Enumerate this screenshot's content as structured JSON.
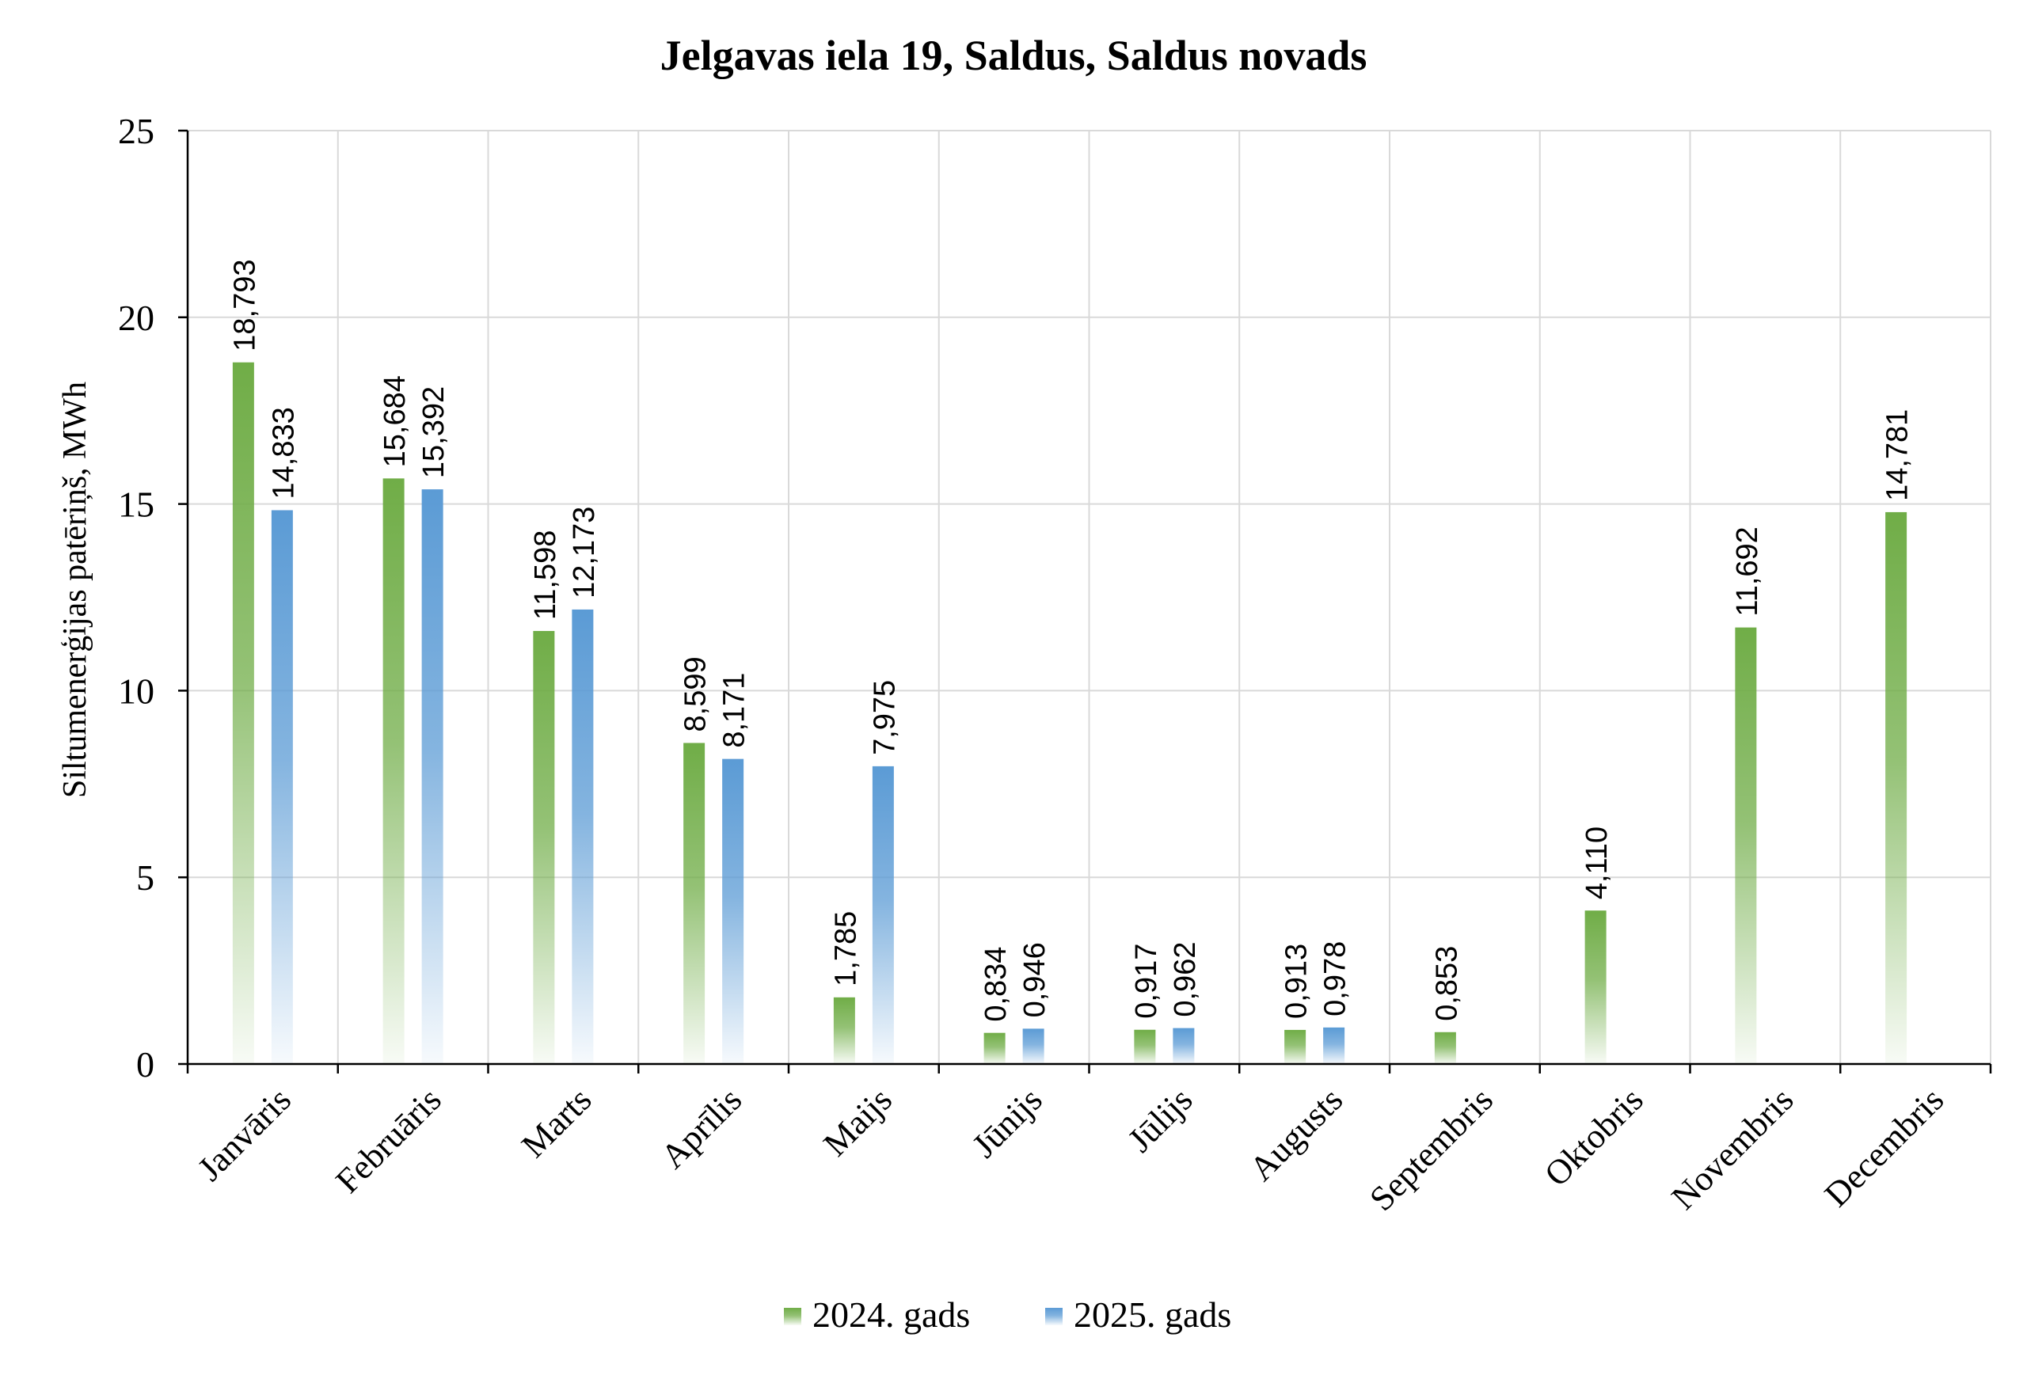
{
  "chart_data": {
    "type": "bar",
    "title": "Jelgavas iela 19, Saldus, Saldus novads",
    "xlabel": "",
    "ylabel": "Siltumenerģijas patēriņš, MWh",
    "ylim": [
      0,
      25
    ],
    "yticks": [
      "0",
      "5",
      "10",
      "15",
      "20",
      "25"
    ],
    "grid": true,
    "legend_position": "bottom",
    "categories": [
      "Janvāris",
      "Februāris",
      "Marts",
      "Aprīlis",
      "Maijs",
      "Jūnijs",
      "Jūlijs",
      "Augusts",
      "Septembris",
      "Oktobris",
      "Novembris",
      "Decembris"
    ],
    "series": [
      {
        "name": "2024. gads",
        "color": "#70AD47",
        "values": [
          18.793,
          15.684,
          11.598,
          8.599,
          1.785,
          0.834,
          0.917,
          0.913,
          0.853,
          4.11,
          11.692,
          14.781
        ],
        "labels": [
          "18,793",
          "15,684",
          "11,598",
          "8,599",
          "1,785",
          "0,834",
          "0,917",
          "0,913",
          "0,853",
          "4,110",
          "11,692",
          "14,781"
        ]
      },
      {
        "name": "2025. gads",
        "color": "#5B9BD5",
        "values": [
          14.833,
          15.392,
          12.173,
          8.171,
          7.975,
          0.946,
          0.962,
          0.978,
          null,
          null,
          null,
          null
        ],
        "labels": [
          "14,833",
          "15,392",
          "12,173",
          "8,171",
          "7,975",
          "0,946",
          "0,962",
          "0,978",
          "",
          "",
          "",
          ""
        ]
      }
    ]
  }
}
